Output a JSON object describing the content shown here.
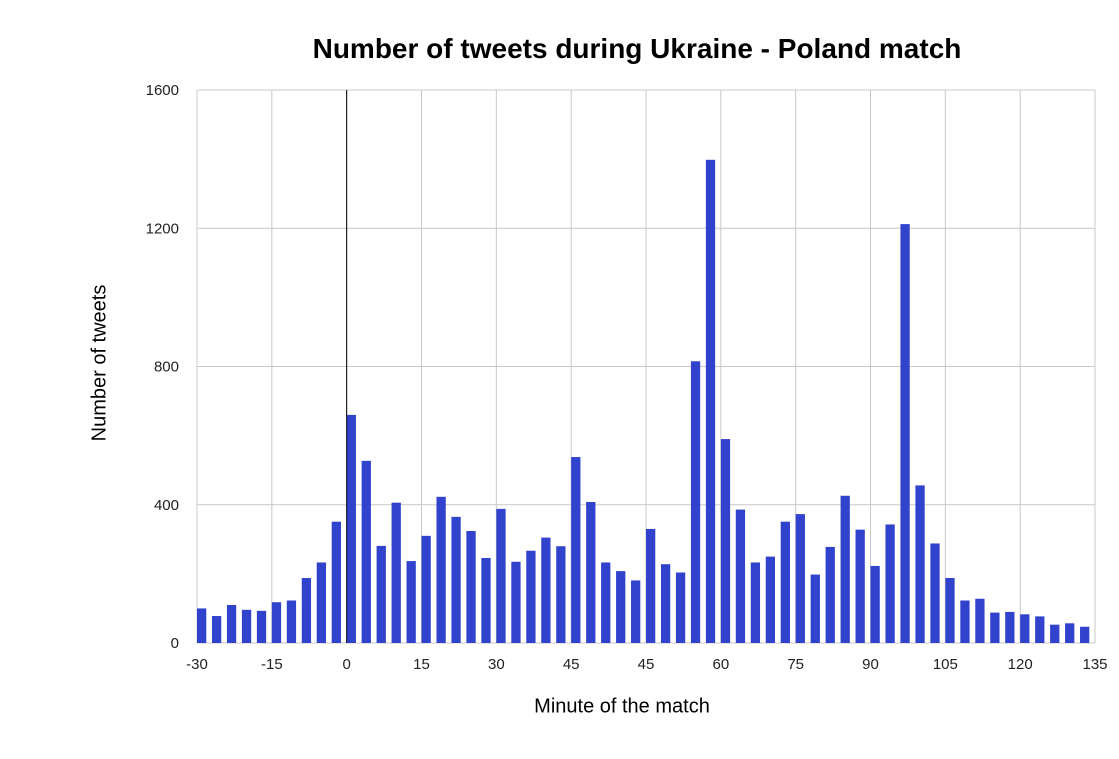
{
  "chart_data": {
    "type": "bar",
    "title": "Number of tweets during Ukraine - Poland match",
    "xlabel": "Minute of the match",
    "ylabel": "Number of tweets",
    "ylim": [
      0,
      1600
    ],
    "y_ticks": [
      "0",
      "400",
      "800",
      "1200",
      "1600"
    ],
    "x_ticks": [
      "-30",
      "-15",
      "0",
      "15",
      "30",
      "45",
      "45",
      "60",
      "75",
      "90",
      "105",
      "120",
      "135"
    ],
    "x_tick_positions": [
      -30,
      -15,
      0,
      15,
      30,
      45,
      60,
      75,
      90,
      105,
      120,
      135,
      150
    ],
    "x_range": [
      -30,
      150
    ],
    "bar_interval_minutes": 3,
    "grid": true,
    "bar_color": "#3142cc",
    "marker_line_at": 0,
    "x": [
      -30,
      -27,
      -24,
      -21,
      -18,
      -15,
      -12,
      -9,
      -6,
      -3,
      0,
      3,
      6,
      9,
      12,
      15,
      18,
      21,
      24,
      27,
      30,
      33,
      36,
      39,
      42,
      45,
      48,
      51,
      54,
      57,
      60,
      63,
      66,
      69,
      72,
      75,
      78,
      81,
      84,
      87,
      90,
      93,
      96,
      99,
      102,
      105,
      108,
      111,
      114,
      117,
      120,
      123,
      126,
      129,
      132,
      135,
      138,
      141,
      144,
      147
    ],
    "values": [
      100,
      78,
      110,
      96,
      93,
      118,
      123,
      188,
      233,
      351,
      660,
      527,
      281,
      406,
      237,
      310,
      423,
      365,
      324,
      246,
      388,
      235,
      267,
      305,
      280,
      538,
      408,
      233,
      208,
      181,
      330,
      228,
      204,
      815,
      1398,
      590,
      386,
      233,
      250,
      351,
      373,
      198,
      278,
      426,
      328,
      223,
      343,
      1212,
      456,
      288,
      188,
      123,
      128,
      88,
      90,
      83,
      77,
      53,
      57,
      47
    ]
  }
}
